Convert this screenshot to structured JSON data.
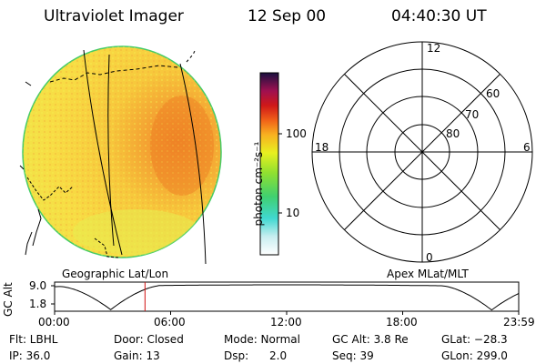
{
  "header": {
    "instrument": "Ultraviolet Imager",
    "date": "12 Sep 00",
    "time": "04:40:30 UT"
  },
  "imager": {
    "label": "Geographic Lat/Lon"
  },
  "colorbar": {
    "unit_label": "photon cm⁻²s⁻¹",
    "ticks": [
      "100",
      "10"
    ]
  },
  "polar_plot": {
    "label": "Apex MLat/MLT",
    "mlt_labels": [
      "12",
      "18",
      "6",
      "0"
    ],
    "lat_labels": [
      "60",
      "70",
      "80"
    ]
  },
  "timeline": {
    "y_title": "GC Alt",
    "y_ticks": [
      "9.0",
      "1.8"
    ],
    "x_ticks": [
      "00:00",
      "06:00",
      "12:00",
      "18:00",
      "23:59"
    ],
    "current_hour": 4.675
  },
  "info": {
    "row1": [
      "Flt: LBHL",
      "Door: Closed",
      "Mode: Normal",
      "GC Alt: 3.8 Re",
      "GLat: −28.3"
    ],
    "row2": [
      "IP: 36.0",
      "Gain: 13",
      "Dsp:      2.0",
      "Seq: 39",
      "GLon: 299.0"
    ]
  },
  "colors": {
    "marker": "#d01010",
    "disk_edge": "#44cc66"
  }
}
